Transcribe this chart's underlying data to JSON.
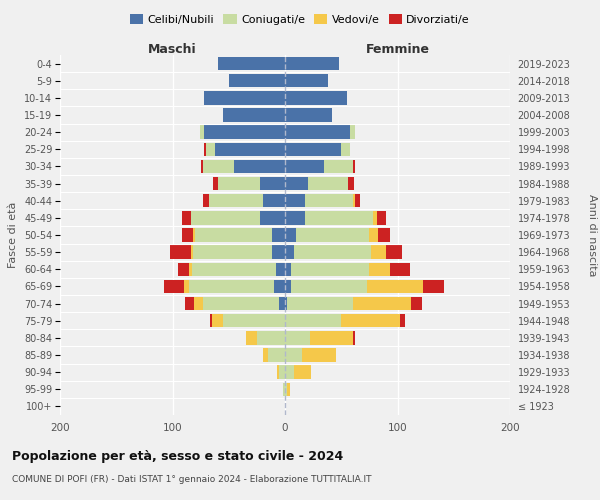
{
  "age_groups": [
    "100+",
    "95-99",
    "90-94",
    "85-89",
    "80-84",
    "75-79",
    "70-74",
    "65-69",
    "60-64",
    "55-59",
    "50-54",
    "45-49",
    "40-44",
    "35-39",
    "30-34",
    "25-29",
    "20-24",
    "15-19",
    "10-14",
    "5-9",
    "0-4"
  ],
  "birth_years": [
    "≤ 1923",
    "1924-1928",
    "1929-1933",
    "1934-1938",
    "1939-1943",
    "1944-1948",
    "1949-1953",
    "1954-1958",
    "1959-1963",
    "1964-1968",
    "1969-1973",
    "1974-1978",
    "1979-1983",
    "1984-1988",
    "1989-1993",
    "1994-1998",
    "1999-2003",
    "2004-2008",
    "2009-2013",
    "2014-2018",
    "2019-2023"
  ],
  "maschi": {
    "celibi": [
      0,
      0,
      0,
      0,
      0,
      0,
      5,
      10,
      8,
      12,
      12,
      22,
      20,
      22,
      45,
      62,
      72,
      55,
      72,
      50,
      60
    ],
    "coniugati": [
      0,
      2,
      5,
      15,
      25,
      55,
      68,
      75,
      75,
      70,
      68,
      62,
      48,
      38,
      28,
      8,
      4,
      0,
      0,
      0,
      0
    ],
    "vedovi": [
      0,
      0,
      2,
      5,
      10,
      10,
      8,
      5,
      2,
      2,
      2,
      0,
      0,
      0,
      0,
      0,
      0,
      0,
      0,
      0,
      0
    ],
    "divorziati": [
      0,
      0,
      0,
      0,
      0,
      2,
      8,
      18,
      10,
      18,
      10,
      8,
      5,
      4,
      2,
      2,
      0,
      0,
      0,
      0,
      0
    ]
  },
  "femmine": {
    "nubili": [
      0,
      0,
      0,
      0,
      0,
      0,
      2,
      5,
      5,
      8,
      10,
      18,
      18,
      20,
      35,
      50,
      58,
      42,
      55,
      38,
      48
    ],
    "coniugate": [
      0,
      2,
      8,
      15,
      22,
      50,
      58,
      68,
      70,
      68,
      65,
      60,
      42,
      36,
      25,
      8,
      4,
      0,
      0,
      0,
      0
    ],
    "vedove": [
      0,
      2,
      15,
      30,
      38,
      52,
      52,
      50,
      18,
      14,
      8,
      4,
      2,
      0,
      0,
      0,
      0,
      0,
      0,
      0,
      0
    ],
    "divorziate": [
      0,
      0,
      0,
      0,
      2,
      5,
      10,
      18,
      18,
      14,
      10,
      8,
      5,
      5,
      2,
      0,
      0,
      0,
      0,
      0,
      0
    ]
  },
  "colors": {
    "celibi": "#4a72a8",
    "coniugati": "#c8dca2",
    "vedovi": "#f5c84a",
    "divorziati": "#cc2222"
  },
  "xlim": 200,
  "title": "Popolazione per età, sesso e stato civile - 2024",
  "subtitle": "COMUNE DI POFI (FR) - Dati ISTAT 1° gennaio 2024 - Elaborazione TUTTITALIA.IT",
  "ylabel_left": "Fasce di età",
  "ylabel_right": "Anni di nascita",
  "xlabel_maschi": "Maschi",
  "xlabel_femmine": "Femmine",
  "legend_labels": [
    "Celibi/Nubili",
    "Coniugati/e",
    "Vedovi/e",
    "Divorziati/e"
  ],
  "background_color": "#f0f0f0"
}
